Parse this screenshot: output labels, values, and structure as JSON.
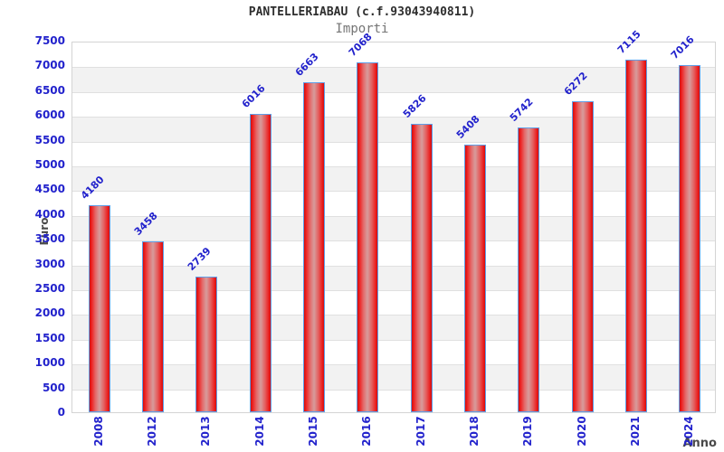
{
  "header": {
    "title": "PANTELLERIABAU (c.f.93043940811)",
    "subtitle": "Importi"
  },
  "chart_data": {
    "type": "bar",
    "title": "PANTELLERIABAU (c.f.93043940811)",
    "subtitle": "Importi",
    "xlabel": "Anno",
    "ylabel": "Euro",
    "categories": [
      "2008",
      "2012",
      "2013",
      "2014",
      "2015",
      "2016",
      "2017",
      "2018",
      "2019",
      "2020",
      "2021",
      "2024"
    ],
    "values": [
      4180,
      3458,
      2739,
      6016,
      6663,
      7068,
      5826,
      5408,
      5742,
      6272,
      7115,
      7016
    ],
    "ylim": [
      0,
      7500
    ],
    "ytick_step": 500,
    "legend": "none",
    "grid": "horizontal-bands-alternating",
    "colors": {
      "bar_main": "#e41414",
      "bar_highlight": "#d79c9c",
      "bar_border": "#5f9fe8",
      "value_label": "#2222cc",
      "tick_label": "#2222cc",
      "band_fill": "#f2f2f2",
      "gridline": "#e0e0e0",
      "plot_border": "#d4d4d4",
      "title": "#2e2e2e",
      "subtitle": "#757575",
      "axis_title": "#4a4a4a"
    }
  }
}
